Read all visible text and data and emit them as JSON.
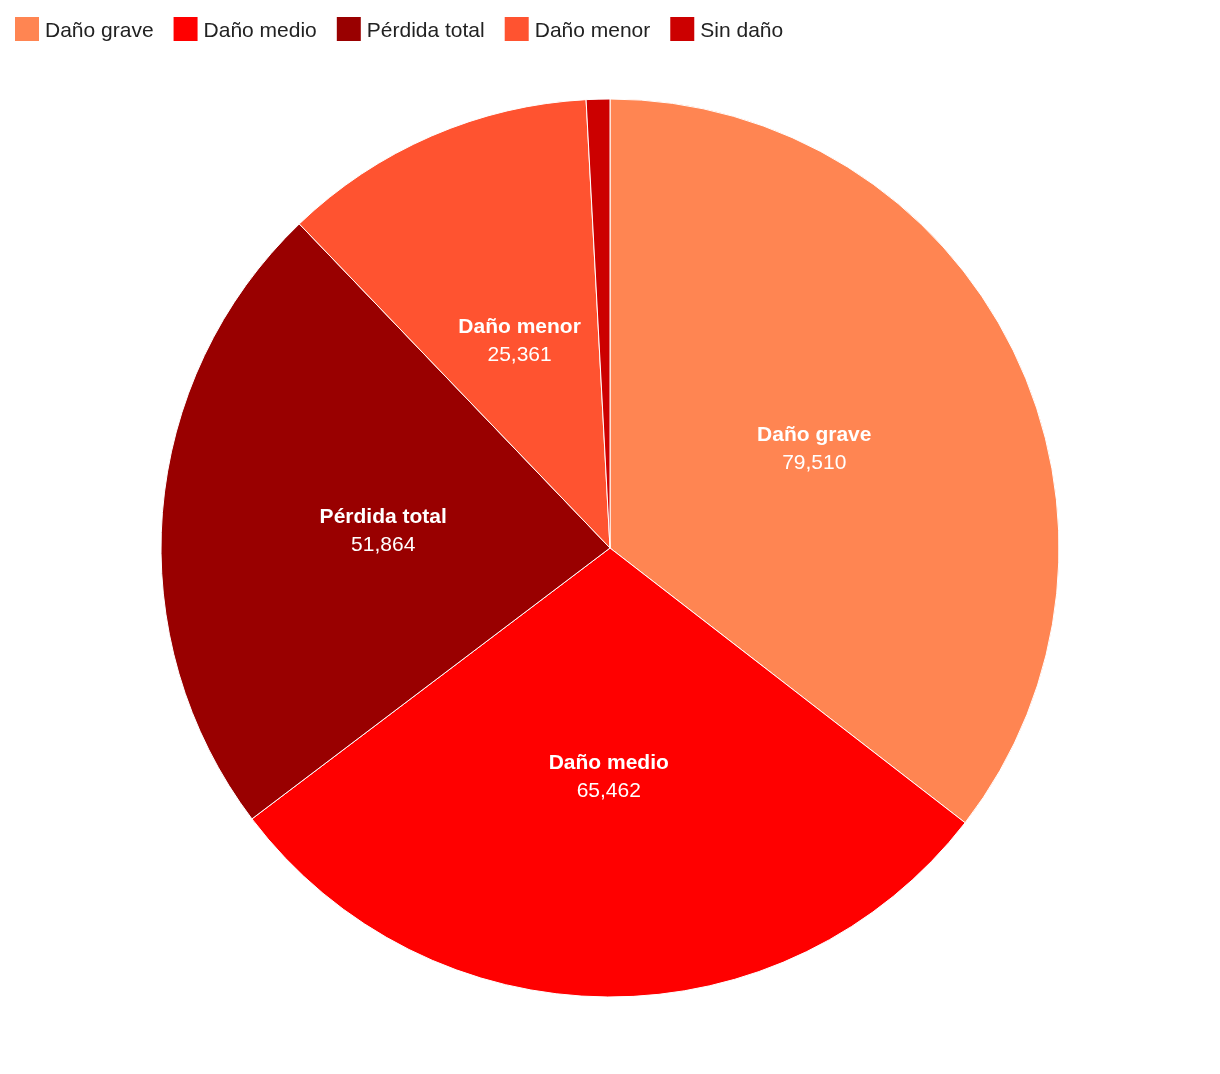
{
  "chart_data": {
    "type": "pie",
    "categories": [
      "Daño grave",
      "Daño medio",
      "Pérdida total",
      "Daño menor",
      "Sin daño"
    ],
    "values": [
      79510,
      65462,
      51864,
      25361,
      1900
    ],
    "value_labels": [
      "79,510",
      "65,462",
      "51,864",
      "25,361",
      null
    ],
    "colors": [
      "#ff8552",
      "#ff0000",
      "#990000",
      "#ff5330",
      "#cc0000"
    ],
    "legend": "top left"
  }
}
